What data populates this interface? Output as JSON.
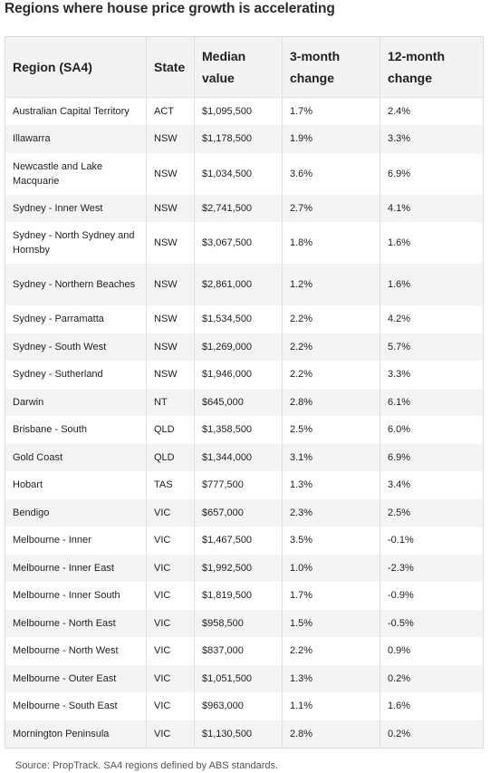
{
  "title": "Regions where house price growth is accelerating",
  "table": {
    "headers": [
      "Region (SA4)",
      "State",
      "Median value",
      "3-month change",
      "12-month change"
    ],
    "rows": [
      [
        "Australian Capital Territory",
        "ACT",
        "$1,095,500",
        "1.7%",
        "2.4%"
      ],
      [
        "Illawarra",
        "NSW",
        "$1,178,500",
        "1.9%",
        "3.3%"
      ],
      [
        "Newcastle and Lake Macquarie",
        "NSW",
        "$1,034,500",
        "3.6%",
        "6.9%"
      ],
      [
        "Sydney - Inner West",
        "NSW",
        "$2,741,500",
        "2.7%",
        "4.1%"
      ],
      [
        "Sydney - North Sydney and Hornsby",
        "NSW",
        "$3,067,500",
        "1.8%",
        "1.6%"
      ],
      [
        "Sydney - Northern Beaches",
        "NSW",
        "$2,861,000",
        "1.2%",
        "1.6%"
      ],
      [
        "Sydney - Parramatta",
        "NSW",
        "$1,534,500",
        "2.2%",
        "4.2%"
      ],
      [
        "Sydney - South West",
        "NSW",
        "$1,269,000",
        "2.2%",
        "5.7%"
      ],
      [
        "Sydney - Sutherland",
        "NSW",
        "$1,946,000",
        "2.2%",
        "3.3%"
      ],
      [
        "Darwin",
        "NT",
        "$645,000",
        "2.8%",
        "6.1%"
      ],
      [
        "Brisbane - South",
        "QLD",
        "$1,358,500",
        "2.5%",
        "6.0%"
      ],
      [
        "Gold Coast",
        "QLD",
        "$1,344,000",
        "3.1%",
        "6.9%"
      ],
      [
        "Hobart",
        "TAS",
        "$777,500",
        "1.3%",
        "3.4%"
      ],
      [
        "Bendigo",
        "VIC",
        "$657,000",
        "2.3%",
        "2.5%"
      ],
      [
        "Melbourne - Inner",
        "VIC",
        "$1,467,500",
        "3.5%",
        "-0.1%"
      ],
      [
        "Melbourne - Inner East",
        "VIC",
        "$1,992,500",
        "1.0%",
        "-2.3%"
      ],
      [
        "Melbourne - Inner South",
        "VIC",
        "$1,819,500",
        "1.7%",
        "-0.9%"
      ],
      [
        "Melbourne - North East",
        "VIC",
        "$958,500",
        "1.5%",
        "-0.5%"
      ],
      [
        "Melbourne - North West",
        "VIC",
        "$837,000",
        "2.2%",
        "0.9%"
      ],
      [
        "Melbourne - Outer East",
        "VIC",
        "$1,051,500",
        "1.3%",
        "0.2%"
      ],
      [
        "Melbourne - South East",
        "VIC",
        "$963,000",
        "1.1%",
        "1.6%"
      ],
      [
        "Mornington Peninsula",
        "VIC",
        "$1,130,500",
        "2.8%",
        "0.2%"
      ]
    ]
  },
  "source": "Source: PropTrack. SA4 regions defined by ABS standards."
}
